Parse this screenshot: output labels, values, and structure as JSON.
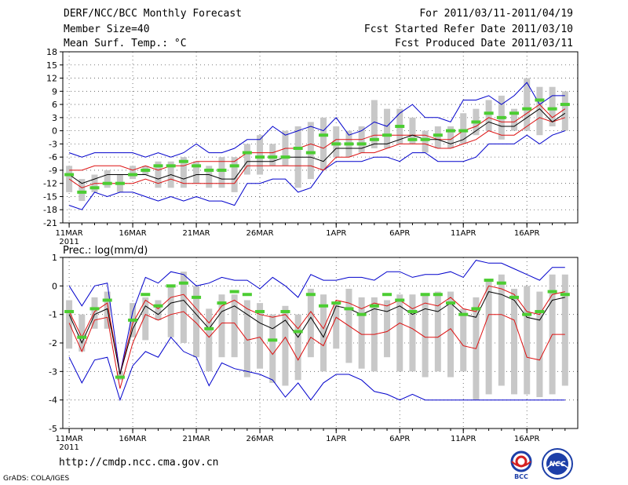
{
  "header": {
    "title": "DERF/NCC/BCC Monthly Forecast",
    "member_size": "Member Size=40",
    "variable": "Mean Surf. Temp.: °C",
    "period": "For 2011/03/11-2011/04/19",
    "started": "Fcst Started Refer Date 2011/03/10",
    "produced": "Fcst Produced Date 2011/03/11"
  },
  "footer": {
    "url": "http://cmdp.ncc.cma.gov.cn",
    "credit": "GrADS: COLA/IGES",
    "logo_bcc_label": "BCC",
    "logo_ncc_label": "NCC"
  },
  "colors": {
    "box": "#c8c8c8",
    "median": "#4ccd32",
    "mean": "#000000",
    "spread": "#dd1111",
    "extreme": "#0000cc",
    "grid": "#555555"
  },
  "chart_data": [
    {
      "type": "line",
      "name": "temperature",
      "title": "Mean Surf. Temp.: °C",
      "xlabel": "",
      "ylabel": "°C",
      "ylim": [
        -21,
        18
      ],
      "yticks": [
        18,
        15,
        12,
        9,
        6,
        3,
        0,
        -3,
        -6,
        -9,
        -12,
        -15,
        -18,
        -21
      ],
      "xticks": [
        {
          "day": 1,
          "label": "11MAR"
        },
        {
          "day": 6,
          "label": "16MAR"
        },
        {
          "day": 11,
          "label": "21MAR"
        },
        {
          "day": 16,
          "label": "26MAR"
        },
        {
          "day": 22,
          "label": "1APR"
        },
        {
          "day": 27,
          "label": "6APR"
        },
        {
          "day": 32,
          "label": "11APR"
        },
        {
          "day": 37,
          "label": "16APR"
        }
      ],
      "year_label": "2011",
      "days": [
        1,
        2,
        3,
        4,
        5,
        6,
        7,
        8,
        9,
        10,
        11,
        12,
        13,
        14,
        15,
        16,
        17,
        18,
        19,
        20,
        21,
        22,
        23,
        24,
        25,
        26,
        27,
        28,
        29,
        30,
        31,
        32,
        33,
        34,
        35,
        36,
        37,
        38,
        39,
        40
      ],
      "series": [
        {
          "name": "max",
          "values": [
            -5,
            -6,
            -5,
            -5,
            -5,
            -5,
            -6,
            -5,
            -6,
            -5,
            -3,
            -5,
            -5,
            -4,
            -2,
            -2,
            1,
            -1,
            0,
            1,
            0,
            3,
            -1,
            0,
            2,
            1,
            4,
            6,
            3,
            3,
            2,
            7,
            7,
            8,
            6,
            8,
            11,
            6,
            8,
            8
          ]
        },
        {
          "name": "upper",
          "values": [
            -9,
            -9,
            -8,
            -8,
            -8,
            -9,
            -8,
            -9,
            -8,
            -8,
            -7,
            -7,
            -7,
            -7,
            -5,
            -5,
            -5,
            -4,
            -4,
            -3,
            -4,
            -2,
            -2,
            -2,
            -1,
            -1,
            -1,
            -1,
            -1,
            -2,
            -2,
            0,
            1,
            3,
            2,
            2,
            4,
            6,
            3,
            5
          ]
        },
        {
          "name": "mean",
          "values": [
            -10,
            -12,
            -11,
            -10,
            -10,
            -10,
            -10,
            -11,
            -10,
            -11,
            -10,
            -10,
            -11,
            -11,
            -7,
            -7,
            -7,
            -6,
            -6,
            -6,
            -7,
            -4,
            -4,
            -4,
            -3,
            -3,
            -2,
            -1,
            -2,
            -2,
            -3,
            -2,
            0,
            2,
            1,
            1,
            3,
            5,
            2,
            4
          ]
        },
        {
          "name": "lower",
          "values": [
            -11,
            -13,
            -12,
            -12,
            -12,
            -12,
            -11,
            -12,
            -11,
            -12,
            -12,
            -12,
            -12,
            -12,
            -8,
            -8,
            -8,
            -8,
            -8,
            -8,
            -9,
            -6,
            -6,
            -5,
            -5,
            -4,
            -3,
            -3,
            -3,
            -4,
            -4,
            -3,
            -2,
            0,
            -1,
            -1,
            1,
            3,
            2,
            3
          ]
        },
        {
          "name": "min",
          "values": [
            -17,
            -18,
            -14,
            -15,
            -14,
            -14,
            -15,
            -16,
            -15,
            -16,
            -15,
            -16,
            -16,
            -17,
            -12,
            -12,
            -11,
            -11,
            -14,
            -13,
            -9,
            -7,
            -7,
            -7,
            -6,
            -6,
            -7,
            -5,
            -5,
            -7,
            -7,
            -7,
            -6,
            -3,
            -3,
            -3,
            -1,
            -3,
            -1,
            0
          ]
        },
        {
          "name": "median",
          "values": [
            -10,
            -14,
            -13,
            -12,
            -12,
            -10,
            -9,
            -8,
            -8,
            -7,
            -8,
            -9,
            -9,
            -8,
            -5,
            -6,
            -6,
            -6,
            -4,
            -5,
            -1,
            -3,
            -3,
            -3,
            -2,
            -1,
            1,
            -2,
            -2,
            -1,
            0,
            0,
            2,
            4,
            3,
            4,
            5,
            7,
            5,
            6
          ]
        },
        {
          "name": "box_high",
          "values": [
            -8,
            -11,
            -10,
            -9,
            -10,
            -8,
            -8,
            -7,
            -7,
            -6,
            -7,
            -8,
            -6,
            -6,
            -3,
            -1,
            -3,
            0,
            1,
            2,
            3,
            1,
            0,
            1,
            7,
            5,
            5,
            3,
            0,
            1,
            1,
            4,
            5,
            7,
            8,
            5,
            12,
            10,
            10,
            9
          ]
        },
        {
          "name": "box_low",
          "values": [
            -14,
            -16,
            -14,
            -13,
            -14,
            -11,
            -10,
            -13,
            -13,
            -13,
            -12,
            -13,
            -13,
            -14,
            -10,
            -10,
            -8,
            -8,
            -13,
            -11,
            -9,
            -6,
            -6,
            -5,
            -4,
            -4,
            -3,
            -3,
            -5,
            -4,
            -4,
            -3,
            -1,
            0,
            -2,
            0,
            0,
            -1,
            1,
            0
          ]
        }
      ]
    },
    {
      "type": "line",
      "name": "precipitation",
      "title": "Prec.: log(mm/d)",
      "xlabel": "",
      "ylabel": "log(mm/d)",
      "ylim": [
        -5,
        1
      ],
      "yticks": [
        1,
        0,
        -1,
        -2,
        -3,
        -4,
        -5
      ],
      "xticks": [
        {
          "day": 1,
          "label": "11MAR"
        },
        {
          "day": 6,
          "label": "16MAR"
        },
        {
          "day": 11,
          "label": "21MAR"
        },
        {
          "day": 16,
          "label": "26MAR"
        },
        {
          "day": 22,
          "label": "1APR"
        },
        {
          "day": 27,
          "label": "6APR"
        },
        {
          "day": 32,
          "label": "11APR"
        },
        {
          "day": 37,
          "label": "16APR"
        }
      ],
      "year_label": "2011",
      "days": [
        1,
        2,
        3,
        4,
        5,
        6,
        7,
        8,
        9,
        10,
        11,
        12,
        13,
        14,
        15,
        16,
        17,
        18,
        19,
        20,
        21,
        22,
        23,
        24,
        25,
        26,
        27,
        28,
        29,
        30,
        31,
        32,
        33,
        34,
        35,
        36,
        37,
        38,
        39,
        40
      ],
      "series": [
        {
          "name": "max",
          "values": [
            0,
            -0.7,
            0,
            0.1,
            -3.1,
            -0.9,
            0.3,
            0.1,
            0.5,
            0.4,
            0,
            0.1,
            0.3,
            0.2,
            0.2,
            -0.1,
            0.3,
            0,
            -0.4,
            0.4,
            0.2,
            0.2,
            0.3,
            0.3,
            0.2,
            0.5,
            0.5,
            0.3,
            0.4,
            0.4,
            0.5,
            0.3,
            0.9,
            0.8,
            0.8,
            0.6,
            0.4,
            0.2,
            0.65,
            0.65
          ]
        },
        {
          "name": "upper",
          "values": [
            -0.9,
            -1.8,
            -0.9,
            -0.6,
            -3.1,
            -1.3,
            -0.5,
            -0.8,
            -0.4,
            -0.3,
            -0.8,
            -1.3,
            -0.7,
            -0.5,
            -0.8,
            -1.0,
            -1.1,
            -1.0,
            -1.5,
            -0.9,
            -1.5,
            -0.5,
            -0.6,
            -0.8,
            -0.6,
            -0.7,
            -0.5,
            -0.8,
            -0.6,
            -0.7,
            -0.4,
            -0.8,
            -0.9,
            0,
            -0.1,
            -0.3,
            -0.9,
            -1.0,
            -0.3,
            -0.2
          ]
        },
        {
          "name": "mean",
          "values": [
            -1.0,
            -2.0,
            -1.0,
            -0.8,
            -3.1,
            -1.5,
            -0.7,
            -1.0,
            -0.6,
            -0.5,
            -1.0,
            -1.5,
            -0.9,
            -0.7,
            -1.0,
            -1.3,
            -1.5,
            -1.2,
            -1.8,
            -1.1,
            -1.8,
            -0.7,
            -0.8,
            -1.0,
            -0.8,
            -0.9,
            -0.7,
            -1.0,
            -0.8,
            -0.9,
            -0.6,
            -1.0,
            -1.1,
            -0.2,
            -0.3,
            -0.5,
            -1.1,
            -1.2,
            -0.5,
            -0.4
          ]
        },
        {
          "name": "lower",
          "values": [
            -1.3,
            -2.3,
            -1.2,
            -1.1,
            -3.6,
            -2.0,
            -1.0,
            -1.2,
            -1.0,
            -0.9,
            -1.3,
            -1.8,
            -1.3,
            -1.3,
            -1.9,
            -1.8,
            -2.4,
            -1.8,
            -2.6,
            -1.8,
            -2.1,
            -1.1,
            -1.4,
            -1.7,
            -1.7,
            -1.6,
            -1.3,
            -1.5,
            -1.8,
            -1.8,
            -1.5,
            -2.1,
            -2.2,
            -1.0,
            -1.0,
            -1.2,
            -2.5,
            -2.6,
            -1.7,
            -1.7
          ]
        },
        {
          "name": "min",
          "values": [
            -2.5,
            -3.4,
            -2.6,
            -2.5,
            -4.0,
            -2.8,
            -2.3,
            -2.5,
            -1.8,
            -2.3,
            -2.5,
            -3.5,
            -2.7,
            -2.9,
            -3.0,
            -3.1,
            -3.3,
            -3.9,
            -3.4,
            -4.0,
            -3.4,
            -3.1,
            -3.1,
            -3.3,
            -3.7,
            -3.8,
            -4.0,
            -3.8,
            -4.0,
            -4.0,
            -4.0,
            -4.0,
            -4.0,
            -4.0,
            -4.0,
            -4.0,
            -4.0,
            -4.0,
            -4.0,
            -4.0
          ]
        },
        {
          "name": "median",
          "values": [
            -0.9,
            -1.8,
            -0.8,
            -0.5,
            -3.2,
            -1.2,
            -0.3,
            -0.7,
            0,
            0.1,
            -0.4,
            -1.5,
            -0.6,
            -0.2,
            -0.3,
            -0.9,
            -1.9,
            -0.9,
            -1.6,
            -0.3,
            -0.7,
            -0.6,
            -0.8,
            -1.0,
            -0.7,
            -0.3,
            -0.5,
            -0.9,
            -0.3,
            -0.3,
            -0.6,
            -1.0,
            -0.8,
            0.2,
            0.1,
            -0.4,
            -1.0,
            -0.9,
            -0.2,
            -0.3
          ]
        },
        {
          "name": "box_high",
          "values": [
            -0.5,
            -1.0,
            -0.4,
            -0.2,
            -3.0,
            -0.6,
            -0.4,
            -0.5,
            0,
            0.5,
            0,
            -0.8,
            -0.3,
            -0.3,
            -0.5,
            -0.6,
            -1.0,
            -0.7,
            -1.0,
            -0.1,
            -0.3,
            -0.6,
            -0.1,
            -0.4,
            -0.4,
            -0.5,
            -0.3,
            -0.3,
            -0.3,
            -0.2,
            -0.2,
            -0.8,
            -0.4,
            0.2,
            0.4,
            -0.1,
            0,
            -0.2,
            0.4,
            0.4
          ]
        },
        {
          "name": "box_low",
          "values": [
            -2.2,
            -2.3,
            -1.5,
            -1.5,
            -3.3,
            -1.8,
            -1.9,
            -1.2,
            -1.8,
            -2.0,
            -2.5,
            -3.0,
            -2.5,
            -2.5,
            -3.2,
            -2.9,
            -3.4,
            -3.5,
            -3.3,
            -2.5,
            -3.0,
            -2.2,
            -2.7,
            -2.9,
            -3.0,
            -2.5,
            -3.0,
            -3.0,
            -3.2,
            -3.0,
            -3.2,
            -3.0,
            -4.0,
            -3.8,
            -3.5,
            -3.8,
            -3.8,
            -3.9,
            -3.8,
            -3.5
          ]
        }
      ]
    }
  ]
}
